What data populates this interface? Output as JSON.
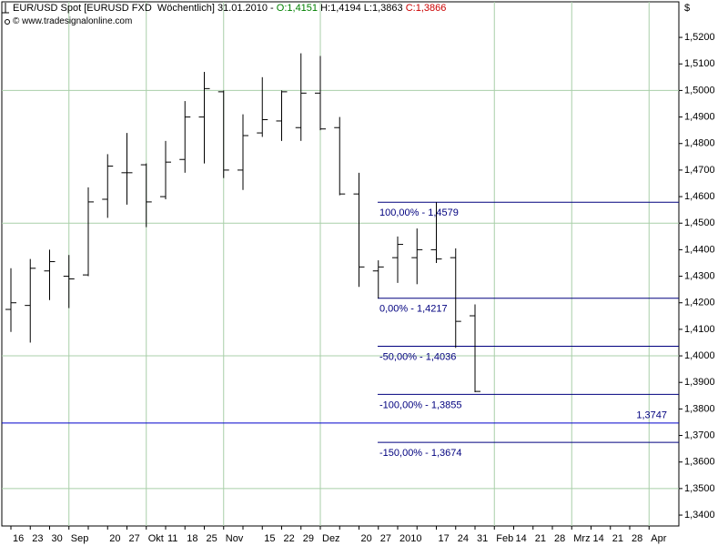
{
  "chart_data": {
    "type": "ohlc",
    "title": {
      "instrument": "EUR/USD Spot [EURUSD FXD  Wöchentlich] 31.01.2010 - ",
      "open": "O:1,4151",
      "high_low": "H:1,4194 L:1,3863",
      "close": "C:1,3866"
    },
    "subtitle": "© www.tradesignalonline.com",
    "y_unit": "$",
    "categories": [
      "16",
      "23",
      "30",
      "Sep",
      null,
      "20",
      "27",
      "Okt",
      "11",
      "18",
      "25",
      "Nov",
      null,
      "15",
      "22",
      "29",
      "Dez",
      null,
      "20",
      "27",
      "2010",
      null,
      "17",
      "24",
      "31",
      "Feb",
      "14",
      "21",
      "28",
      "Mrz",
      "14",
      "21",
      "28",
      "Apr"
    ],
    "series": [
      {
        "name": "EUR/USD",
        "color": "#000000",
        "open": [
          1.4175,
          1.419,
          1.432,
          1.43,
          1.4305,
          1.459,
          1.469,
          1.472,
          1.46,
          1.474,
          1.49,
          1.4995,
          1.47,
          1.484,
          1.4885,
          1.486,
          1.499,
          1.486,
          1.461,
          1.432,
          1.437,
          1.437,
          1.44,
          1.437,
          1.4151,
          null,
          null,
          null,
          null,
          null,
          null,
          null,
          null,
          null
        ],
        "high": [
          1.433,
          1.4365,
          1.44,
          1.438,
          1.4635,
          1.476,
          1.484,
          1.4725,
          1.481,
          1.496,
          1.507,
          1.5,
          1.491,
          1.505,
          1.5,
          1.514,
          1.513,
          1.49,
          1.469,
          1.436,
          1.445,
          1.448,
          1.4579,
          1.4405,
          1.4194,
          null,
          null,
          null,
          null,
          null,
          null,
          null,
          null,
          null
        ],
        "low": [
          1.409,
          1.405,
          1.421,
          1.418,
          1.43,
          1.452,
          1.457,
          1.4485,
          1.459,
          1.469,
          1.4725,
          1.467,
          1.4625,
          1.4825,
          1.481,
          1.481,
          1.485,
          1.4605,
          1.426,
          1.4217,
          1.4275,
          1.427,
          1.435,
          1.403,
          1.3863,
          null,
          null,
          null,
          null,
          null,
          null,
          null,
          null,
          null
        ],
        "close": [
          1.42,
          1.433,
          1.4355,
          1.429,
          1.458,
          1.4715,
          1.469,
          1.458,
          1.473,
          1.49,
          1.5007,
          1.47,
          1.483,
          1.489,
          1.4995,
          1.499,
          1.4855,
          1.461,
          1.4335,
          1.4335,
          1.442,
          1.44,
          1.4365,
          1.413,
          1.3866,
          null,
          null,
          null,
          null,
          null,
          null,
          null,
          null,
          null
        ]
      }
    ],
    "ylim": [
      1.3359,
      1.5334
    ],
    "yticks": [
      {
        "value": 1.34,
        "label": "1,3400"
      },
      {
        "value": 1.35,
        "label": "1,3500"
      },
      {
        "value": 1.36,
        "label": "1,3600"
      },
      {
        "value": 1.37,
        "label": "1,3700"
      },
      {
        "value": 1.38,
        "label": "1,3800"
      },
      {
        "value": 1.39,
        "label": "1,3900"
      },
      {
        "value": 1.4,
        "label": "1,4000"
      },
      {
        "value": 1.41,
        "label": "1,4100"
      },
      {
        "value": 1.42,
        "label": "1,4200"
      },
      {
        "value": 1.43,
        "label": "1,4300"
      },
      {
        "value": 1.44,
        "label": "1,4400"
      },
      {
        "value": 1.45,
        "label": "1,4500"
      },
      {
        "value": 1.46,
        "label": "1,4600"
      },
      {
        "value": 1.47,
        "label": "1,4700"
      },
      {
        "value": 1.48,
        "label": "1,4800"
      },
      {
        "value": 1.49,
        "label": "1,4900"
      },
      {
        "value": 1.5,
        "label": "1,5000"
      },
      {
        "value": 1.51,
        "label": "1,5100"
      },
      {
        "value": 1.52,
        "label": "1,5200"
      }
    ],
    "ygrid": [
      1.35,
      1.4,
      1.45,
      1.5
    ],
    "grid_color": "#a9cfa9",
    "fib_color": "#00007f",
    "fib_levels": [
      {
        "value": 1.4579,
        "label": "100,00% - 1,4579"
      },
      {
        "value": 1.4217,
        "label": "0,00% - 1,4217"
      },
      {
        "value": 1.4036,
        "label": "-50,00% - 1,4036"
      },
      {
        "value": 1.3855,
        "label": "-100,00% - 1,3855"
      },
      {
        "value": 1.3674,
        "label": "-150,00% - 1,3674"
      }
    ],
    "hline": {
      "value": 1.3747,
      "label": "1,3747",
      "color": "#0000cc"
    }
  }
}
